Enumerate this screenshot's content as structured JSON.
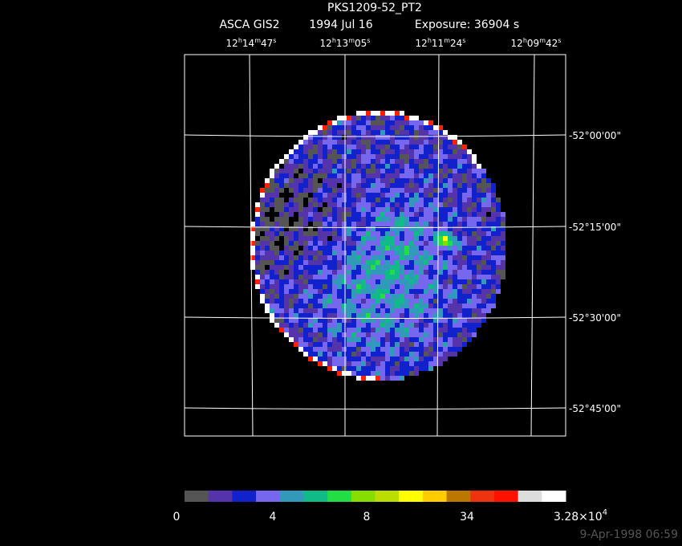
{
  "header": {
    "title": "PKS1209-52_PT2",
    "instrument": "ASCA GIS2",
    "date": "1994 Jul 16",
    "exposure": "Exposure: 36904 s"
  },
  "ra_labels": [
    [
      "12",
      "h",
      "14",
      "m",
      "47",
      "s"
    ],
    [
      "12",
      "h",
      "13",
      "m",
      "05",
      "s"
    ],
    [
      "12",
      "h",
      "11",
      "m",
      "24",
      "s"
    ],
    [
      "12",
      "h",
      "09",
      "m",
      "42",
      "s"
    ]
  ],
  "dec_labels": [
    "-52°00'00\"",
    "-52°15'00\"",
    "-52°30'00\"",
    "-52°45'00\""
  ],
  "colorbar": {
    "labels": [
      "0",
      "4",
      "8",
      "34"
    ],
    "max_label": [
      "3.28×10",
      "4"
    ]
  },
  "timestamp": "9-Apr-1998 06:59"
}
